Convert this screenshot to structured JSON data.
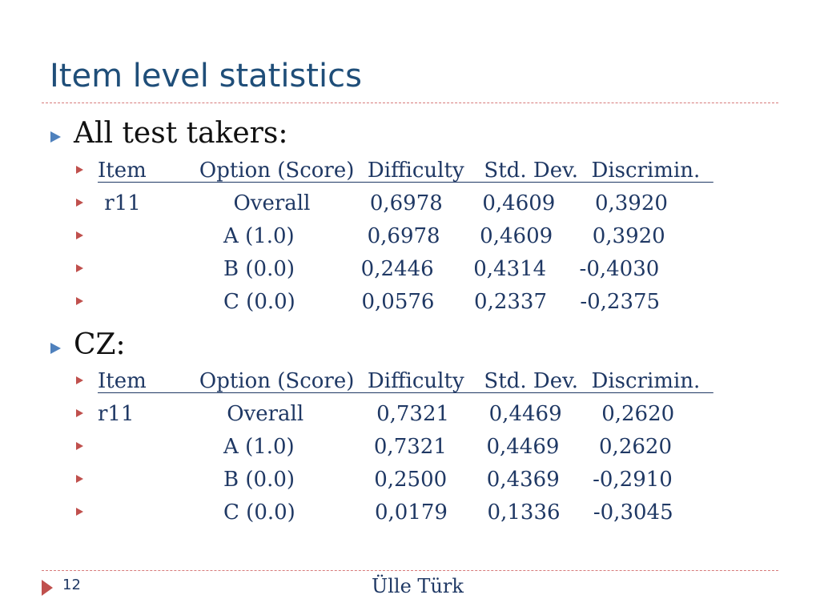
{
  "slide": {
    "title": "Item level statistics",
    "page_number": "12",
    "author": "Ülle Türk"
  },
  "sections": [
    {
      "heading": "All test takers:",
      "rows": [
        "Item        Option (Score)  Difficulty   Std. Dev.  Discrimin.  ",
        " r11              Overall         0,6978      0,4609      0,3920",
        "                   A (1.0)           0,6978      0,4609      0,3920",
        "                   B (0.0)          0,2446      0,4314     -0,4030",
        "                   C (0.0)          0,0576      0,2337     -0,2375"
      ]
    },
    {
      "heading": "CZ:",
      "rows": [
        "Item        Option (Score)  Difficulty   Std. Dev.  Discrimin.  ",
        "r11              Overall           0,7321      0,4469      0,2620",
        "                   A (1.0)            0,7321      0,4469      0,2620",
        "                   B (0.0)            0,2500      0,4369     -0,2910",
        "                   C (0.0)            0,0179      0,1336     -0,3045"
      ]
    }
  ]
}
